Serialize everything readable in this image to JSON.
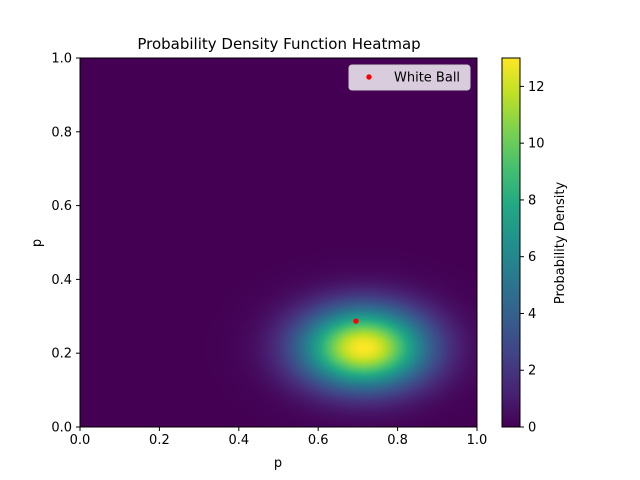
{
  "chart_data": {
    "type": "heatmap",
    "title": "Probability Density Function Heatmap",
    "xlabel": "p",
    "ylabel": "p",
    "xlim": [
      0.0,
      1.0
    ],
    "ylim": [
      0.0,
      1.0
    ],
    "x_ticks": [
      "0.0",
      "0.2",
      "0.4",
      "0.6",
      "0.8",
      "1.0"
    ],
    "y_ticks": [
      "0.0",
      "0.2",
      "0.4",
      "0.6",
      "0.8",
      "1.0"
    ],
    "x_tick_values": [
      0.0,
      0.2,
      0.4,
      0.6,
      0.8,
      1.0
    ],
    "y_tick_values": [
      0.0,
      0.2,
      0.4,
      0.6,
      0.8,
      1.0
    ],
    "colormap": "viridis",
    "density_peak": {
      "x": 0.715,
      "y": 0.215,
      "value": 13.0
    },
    "density_spread": {
      "sx": 0.11,
      "sy": 0.075
    },
    "colorbar": {
      "label": "Probability Density",
      "range": [
        0,
        13
      ],
      "ticks": [
        "0",
        "2",
        "4",
        "6",
        "8",
        "10",
        "12"
      ],
      "tick_values": [
        0,
        2,
        4,
        6,
        8,
        10,
        12
      ]
    },
    "marker": {
      "name": "White Ball",
      "x": 0.695,
      "y": 0.287,
      "color": "#ff0000"
    },
    "legend": {
      "position": "upper-right",
      "entries": [
        "White Ball"
      ]
    },
    "grid": false
  }
}
